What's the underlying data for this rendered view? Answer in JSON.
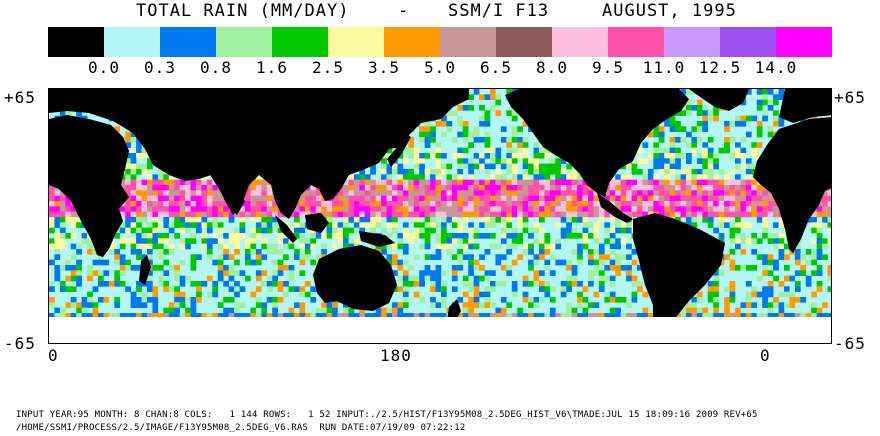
{
  "title": {
    "product": "TOTAL RAIN (MM/DAY)",
    "separator": "-",
    "sensor": "SSM/I F13",
    "period": "AUGUST, 1995"
  },
  "legend": {
    "colors": [
      "#000000",
      "#b4f5f5",
      "#0078f0",
      "#a0f0a0",
      "#00c800",
      "#fafaa0",
      "#ff9b00",
      "#c89696",
      "#8c5a5a",
      "#ffbedc",
      "#ff50aa",
      "#c896fa",
      "#a050f0",
      "#ff00ff"
    ],
    "labels": [
      "0.0",
      "0.3",
      "0.8",
      "1.6",
      "2.5",
      "3.5",
      "5.0",
      "6.5",
      "8.0",
      "9.5",
      "11.0",
      "12.5",
      "14.0"
    ]
  },
  "axes": {
    "lat_top": "+65",
    "lat_bottom": "-65",
    "lon_left": "0",
    "lon_center": "180",
    "lon_right": "0"
  },
  "footer": {
    "line1": "INPUT YEAR:95 MONTH: 8 CHAN:8 COLS:   1 144 ROWS:   1 52 INPUT:./2.5/HIST/F13Y95M08_2.5DEG_HIST_V6\\TMADE:JUL 15 18:09:16 2009 REV+65",
    "line2": "/HOME/SSMI/PROCESS/2.5/IMAGE/F13Y95M08_2.5DEG_V6.RAS  RUN DATE:07/19/09 07:22:12"
  },
  "map": {
    "land_color": "#000000",
    "ocean_color": "#b4f5f5",
    "no_data_color": "#ffffff"
  }
}
